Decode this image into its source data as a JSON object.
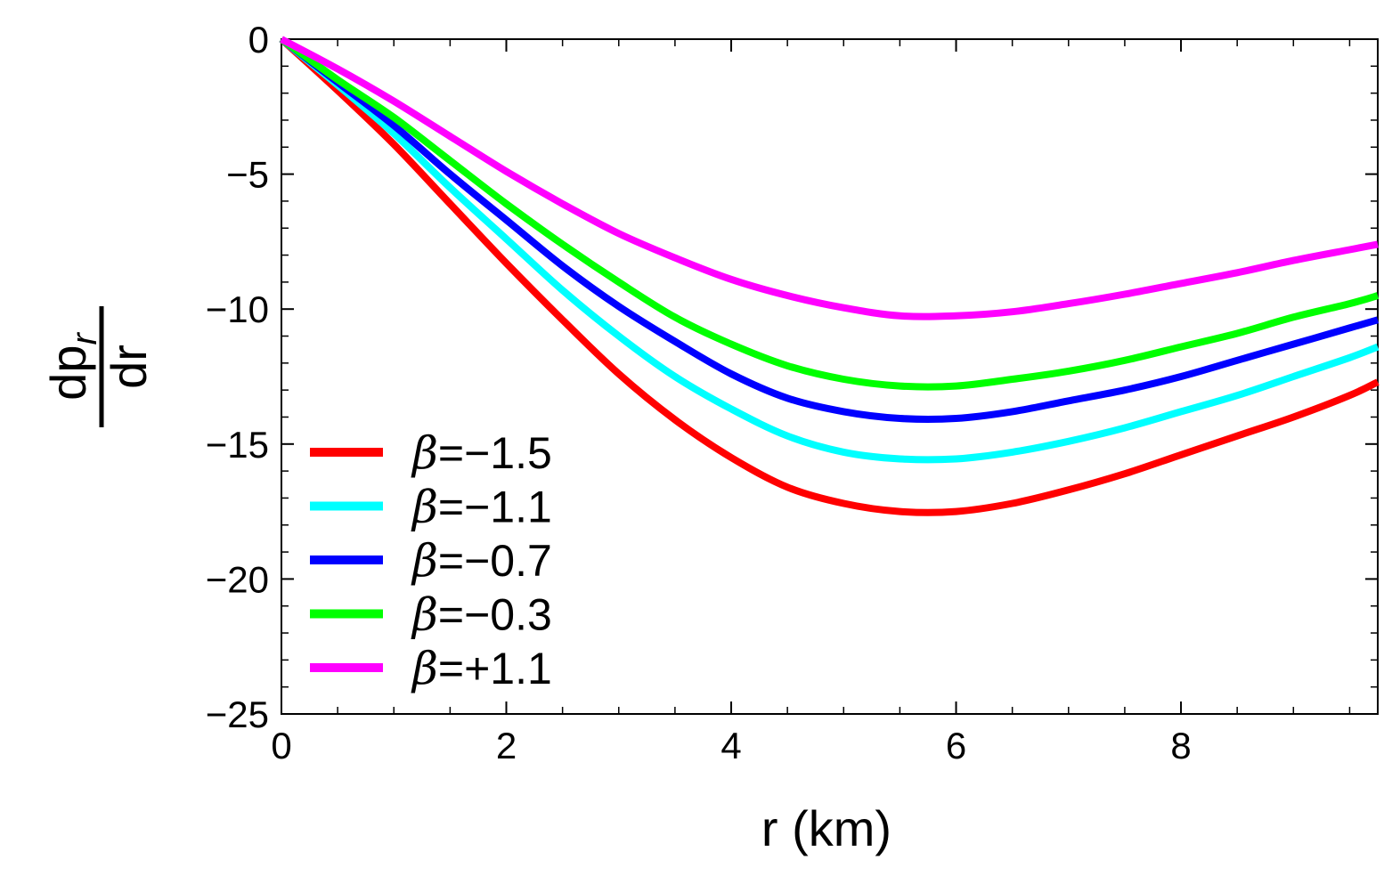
{
  "chart_data": {
    "type": "line",
    "title": "",
    "xlabel": "r (km)",
    "ylabel": {
      "numerator": "dp",
      "subscript": "r",
      "denominator": "dr"
    },
    "xlim": [
      0,
      9.75
    ],
    "ylim": [
      -25,
      0
    ],
    "x_ticks": [
      0,
      2,
      4,
      6,
      8
    ],
    "y_ticks": [
      0,
      -5,
      -10,
      -15,
      -20,
      -25
    ],
    "x_tick_labels": [
      "0",
      "2",
      "4",
      "6",
      "8"
    ],
    "y_tick_labels": [
      "0",
      "−5",
      "−10",
      "−15",
      "−20",
      "−25"
    ],
    "grid": false,
    "legend_position": "lower-left",
    "x": [
      0,
      0.5,
      1,
      1.5,
      2,
      2.5,
      3,
      3.5,
      4,
      4.5,
      5,
      5.5,
      6,
      6.5,
      7,
      7.5,
      8,
      8.5,
      9,
      9.5,
      9.75
    ],
    "series": [
      {
        "name": "β=−1.5",
        "symbol": "β",
        "value": "=−1.5",
        "color": "#ff0000",
        "values": [
          0,
          -1.9,
          -3.9,
          -6.1,
          -8.3,
          -10.4,
          -12.4,
          -14.1,
          -15.5,
          -16.6,
          -17.2,
          -17.5,
          -17.5,
          -17.2,
          -16.7,
          -16.1,
          -15.4,
          -14.7,
          -14.0,
          -13.2,
          -12.7
        ]
      },
      {
        "name": "β=−1.1",
        "symbol": "β",
        "value": "=−1.1",
        "color": "#00ffff",
        "values": [
          0,
          -1.7,
          -3.5,
          -5.5,
          -7.4,
          -9.3,
          -11.0,
          -12.5,
          -13.7,
          -14.7,
          -15.3,
          -15.55,
          -15.55,
          -15.3,
          -14.9,
          -14.4,
          -13.8,
          -13.2,
          -12.5,
          -11.8,
          -11.4
        ]
      },
      {
        "name": "β=−0.7",
        "symbol": "β",
        "value": "=−0.7",
        "color": "#0000ff",
        "values": [
          0,
          -1.6,
          -3.2,
          -5.0,
          -6.7,
          -8.4,
          -9.9,
          -11.2,
          -12.4,
          -13.3,
          -13.8,
          -14.05,
          -14.05,
          -13.8,
          -13.4,
          -13.0,
          -12.5,
          -11.9,
          -11.3,
          -10.7,
          -10.4
        ]
      },
      {
        "name": "β=−0.3",
        "symbol": "β",
        "value": "=−0.3",
        "color": "#00ff00",
        "values": [
          0,
          -1.5,
          -2.9,
          -4.5,
          -6.1,
          -7.6,
          -9.0,
          -10.3,
          -11.3,
          -12.1,
          -12.6,
          -12.85,
          -12.85,
          -12.6,
          -12.3,
          -11.9,
          -11.4,
          -10.9,
          -10.3,
          -9.8,
          -9.5
        ]
      },
      {
        "name": "β=+1.1",
        "symbol": "β",
        "value": "=+1.1",
        "color": "#ff00ff",
        "values": [
          0,
          -1.1,
          -2.3,
          -3.6,
          -4.9,
          -6.1,
          -7.2,
          -8.1,
          -8.9,
          -9.5,
          -9.95,
          -10.25,
          -10.25,
          -10.1,
          -9.8,
          -9.45,
          -9.05,
          -8.65,
          -8.2,
          -7.8,
          -7.6
        ]
      }
    ]
  }
}
